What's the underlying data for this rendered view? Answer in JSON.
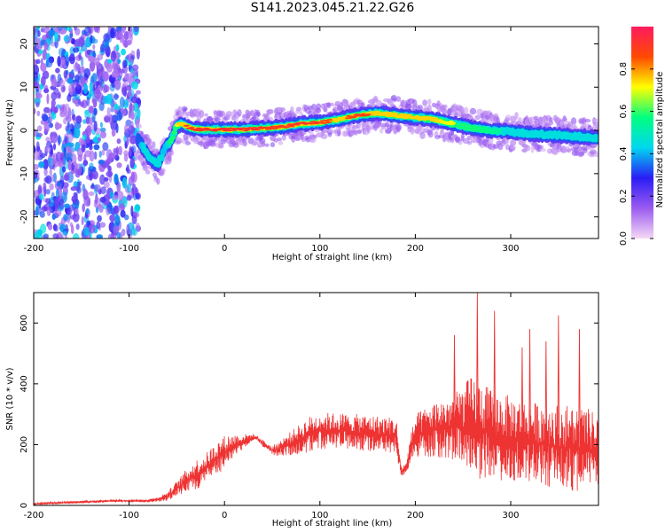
{
  "page": {
    "title": "S141.2023.045.21.22.G26"
  },
  "chart_data": [
    {
      "type": "heatmap",
      "title": "",
      "xlabel": "Height of straight line (km)",
      "ylabel": "Frequency (Hz)",
      "xlim": [
        -200,
        392
      ],
      "ylim": [
        -25,
        24
      ],
      "x_ticks": [
        -200,
        -100,
        0,
        100,
        200,
        300
      ],
      "y_ticks": [
        -20,
        -10,
        0,
        10,
        20
      ],
      "grid": false,
      "noise_region": {
        "x": [
          -200,
          -90
        ],
        "y": [
          -25,
          24
        ]
      },
      "track": {
        "x": [
          -90,
          -85,
          -80,
          -75,
          -70,
          -62,
          -55,
          -50,
          -45,
          -40,
          -35,
          -30,
          -20,
          0,
          20,
          40,
          60,
          80,
          100,
          120,
          140,
          160,
          180,
          200,
          220,
          240,
          260,
          280,
          300,
          320,
          340,
          360,
          380,
          392
        ],
        "y": [
          -2,
          -4,
          -6,
          -7,
          -8,
          -4,
          -2,
          1,
          1.5,
          1,
          0.5,
          0.3,
          0.2,
          0.2,
          0.2,
          0.5,
          0.8,
          1.5,
          1.8,
          2.5,
          3.5,
          4,
          3.5,
          3,
          2.5,
          1.5,
          0.5,
          0,
          -0.3,
          -0.8,
          -1,
          -1.3,
          -1.5,
          -1.8
        ],
        "amplitude": [
          0.35,
          0.45,
          0.5,
          0.45,
          0.5,
          0.4,
          0.6,
          0.7,
          0.8,
          0.9,
          0.95,
          0.95,
          0.95,
          0.98,
          0.98,
          0.9,
          0.9,
          0.92,
          0.9,
          0.85,
          0.9,
          0.85,
          0.8,
          0.8,
          0.75,
          0.7,
          0.6,
          0.55,
          0.5,
          0.5,
          0.5,
          0.5,
          0.5,
          0.5
        ]
      },
      "colorbar": {
        "label": "Normalized spectral amplitude",
        "range": [
          0,
          1
        ],
        "ticks": [
          0.0,
          0.2,
          0.4,
          0.6,
          0.8
        ],
        "colormap": [
          "#f5d9f5",
          "#9b5bf0",
          "#2a1df5",
          "#00d7f0",
          "#00ff80",
          "#ffff00",
          "#ff4a00",
          "#ff1a60"
        ]
      }
    },
    {
      "type": "line",
      "title": "",
      "xlabel": "Height of straight line (km)",
      "ylabel": "SNR (10 * v/v)",
      "xlim": [
        -200,
        392
      ],
      "ylim": [
        0,
        700
      ],
      "x_ticks": [
        -200,
        -100,
        0,
        100,
        200,
        300
      ],
      "y_ticks": [
        0,
        200,
        400,
        600
      ],
      "grid": false,
      "line_color": "#ee3333",
      "series": [
        {
          "x": [
            -200,
            -180,
            -160,
            -140,
            -120,
            -100,
            -80,
            -70,
            -60,
            -50,
            -40,
            -30,
            -20,
            -10,
            0,
            10,
            20,
            30,
            35,
            40,
            50,
            60,
            70,
            80,
            90,
            100,
            120,
            140,
            160,
            180,
            185,
            190,
            195,
            200,
            220,
            240,
            260,
            280,
            300,
            320,
            340,
            360,
            380,
            392
          ],
          "values": [
            5,
            8,
            10,
            12,
            15,
            15,
            15,
            20,
            30,
            55,
            80,
            100,
            120,
            150,
            175,
            195,
            210,
            225,
            220,
            205,
            180,
            190,
            205,
            220,
            235,
            245,
            245,
            240,
            235,
            230,
            110,
            120,
            180,
            230,
            250,
            255,
            260,
            230,
            220,
            210,
            200,
            190,
            180,
            175
          ],
          "spread": [
            3,
            3,
            4,
            4,
            4,
            4,
            5,
            8,
            15,
            25,
            40,
            50,
            50,
            55,
            55,
            40,
            25,
            10,
            8,
            12,
            15,
            30,
            40,
            50,
            60,
            60,
            60,
            60,
            60,
            60,
            20,
            20,
            50,
            70,
            90,
            110,
            170,
            150,
            140,
            130,
            140,
            140,
            140,
            120
          ],
          "peaks": [
            [
              265,
              700
            ],
            [
              283,
              640
            ],
            [
              350,
              625
            ],
            [
              320,
              580
            ],
            [
              372,
              580
            ],
            [
              241,
              560
            ],
            [
              312,
              520
            ],
            [
              337,
              540
            ]
          ]
        }
      ]
    }
  ]
}
